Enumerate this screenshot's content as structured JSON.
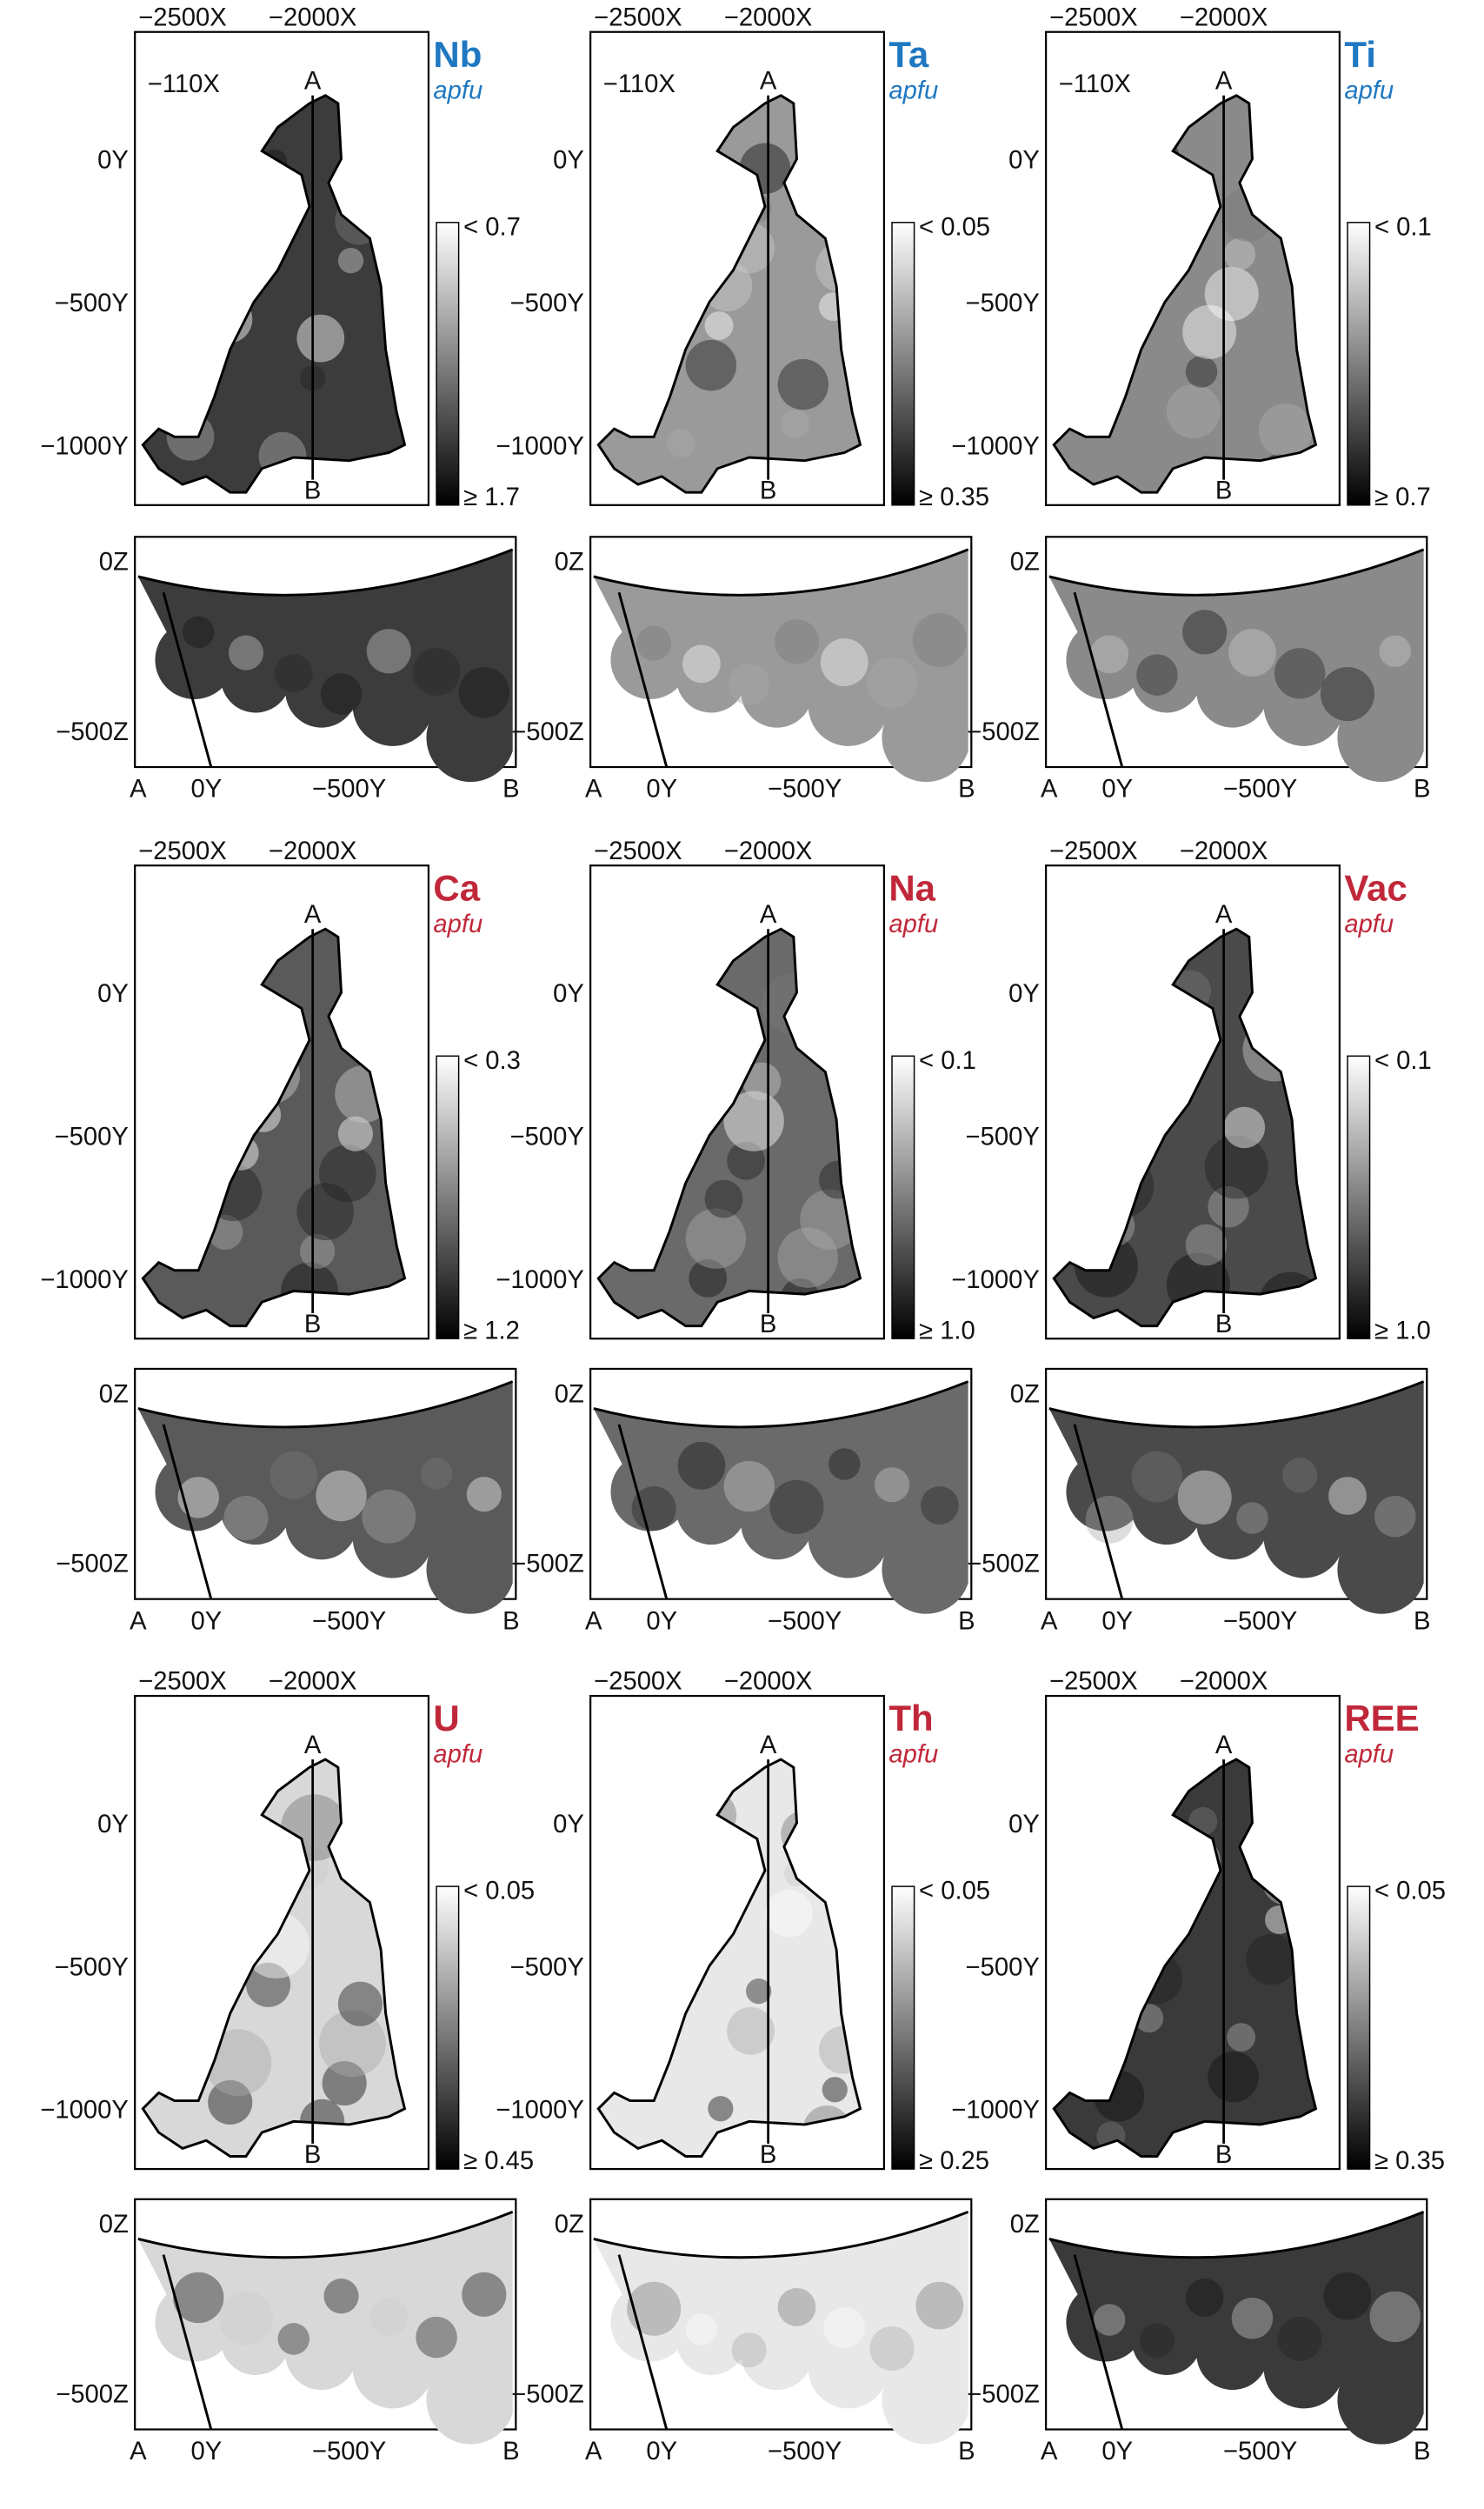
{
  "panels": [
    {
      "element": "Nb",
      "unit": "apfu",
      "title_color": "#1f78c1",
      "map_x_ticks": [
        "−2500X",
        "−2000X"
      ],
      "map_y_ticks": [
        "0Y",
        "−500Y",
        "−1000Y"
      ],
      "inset_label": "−110X",
      "section_start": "A",
      "section_end": "B",
      "colorbar_top": "< 0.7",
      "colorbar_bottom": "≥ 1.7",
      "section_z_ticks": [
        "0Z",
        "−500Z"
      ],
      "section_x_ticks": [
        "A",
        "0Y",
        "−500Y",
        "B"
      ]
    },
    {
      "element": "Ta",
      "unit": "apfu",
      "title_color": "#1f78c1",
      "map_x_ticks": [
        "−2500X",
        "−2000X"
      ],
      "map_y_ticks": [
        "0Y",
        "−500Y",
        "−1000Y"
      ],
      "inset_label": "−110X",
      "section_start": "A",
      "section_end": "B",
      "colorbar_top": "< 0.05",
      "colorbar_bottom": "≥ 0.35",
      "section_z_ticks": [
        "0Z",
        "−500Z"
      ],
      "section_x_ticks": [
        "A",
        "0Y",
        "−500Y",
        "B"
      ]
    },
    {
      "element": "Ti",
      "unit": "apfu",
      "title_color": "#1f78c1",
      "map_x_ticks": [
        "−2500X",
        "−2000X"
      ],
      "map_y_ticks": [
        "0Y",
        "−500Y",
        "−1000Y"
      ],
      "inset_label": "−110X",
      "section_start": "A",
      "section_end": "B",
      "colorbar_top": "< 0.1",
      "colorbar_bottom": "≥ 0.7",
      "section_z_ticks": [
        "0Z",
        "−500Z"
      ],
      "section_x_ticks": [
        "A",
        "0Y",
        "−500Y",
        "B"
      ]
    },
    {
      "element": "Ca",
      "unit": "apfu",
      "title_color": "#c0283a",
      "map_x_ticks": [
        "−2500X",
        "−2000X"
      ],
      "map_y_ticks": [
        "0Y",
        "−500Y",
        "−1000Y"
      ],
      "section_start": "A",
      "section_end": "B",
      "colorbar_top": "< 0.3",
      "colorbar_bottom": "≥ 1.2",
      "section_z_ticks": [
        "0Z",
        "−500Z"
      ],
      "section_x_ticks": [
        "A",
        "0Y",
        "−500Y",
        "B"
      ]
    },
    {
      "element": "Na",
      "unit": "apfu",
      "title_color": "#c0283a",
      "map_x_ticks": [
        "−2500X",
        "−2000X"
      ],
      "map_y_ticks": [
        "0Y",
        "−500Y",
        "−1000Y"
      ],
      "section_start": "A",
      "section_end": "B",
      "colorbar_top": "< 0.1",
      "colorbar_bottom": "≥ 1.0",
      "section_z_ticks": [
        "0Z",
        "−500Z"
      ],
      "section_x_ticks": [
        "A",
        "0Y",
        "−500Y",
        "B"
      ]
    },
    {
      "element": "Vac",
      "unit": "apfu",
      "title_color": "#c0283a",
      "map_x_ticks": [
        "−2500X",
        "−2000X"
      ],
      "map_y_ticks": [
        "0Y",
        "−500Y",
        "−1000Y"
      ],
      "section_start": "A",
      "section_end": "B",
      "colorbar_top": "< 0.1",
      "colorbar_bottom": "≥ 1.0",
      "section_z_ticks": [
        "0Z",
        "−500Z"
      ],
      "section_x_ticks": [
        "A",
        "0Y",
        "−500Y",
        "B"
      ]
    },
    {
      "element": "U",
      "unit": "apfu",
      "title_color": "#c0283a",
      "map_x_ticks": [
        "−2500X",
        "−2000X"
      ],
      "map_y_ticks": [
        "0Y",
        "−500Y",
        "−1000Y"
      ],
      "section_start": "A",
      "section_end": "B",
      "colorbar_top": "< 0.05",
      "colorbar_bottom": "≥ 0.45",
      "section_z_ticks": [
        "0Z",
        "−500Z"
      ],
      "section_x_ticks": [
        "A",
        "0Y",
        "−500Y",
        "B"
      ]
    },
    {
      "element": "Th",
      "unit": "apfu",
      "title_color": "#c0283a",
      "map_x_ticks": [
        "−2500X",
        "−2000X"
      ],
      "map_y_ticks": [
        "0Y",
        "−500Y",
        "−1000Y"
      ],
      "section_start": "A",
      "section_end": "B",
      "colorbar_top": "< 0.05",
      "colorbar_bottom": "≥ 0.25",
      "section_z_ticks": [
        "0Z",
        "−500Z"
      ],
      "section_x_ticks": [
        "A",
        "0Y",
        "−500Y",
        "B"
      ]
    },
    {
      "element": "REE",
      "unit": "apfu",
      "title_color": "#c0283a",
      "map_x_ticks": [
        "−2500X",
        "−2000X"
      ],
      "map_y_ticks": [
        "0Y",
        "−500Y",
        "−1000Y"
      ],
      "section_start": "A",
      "section_end": "B",
      "colorbar_top": "< 0.05",
      "colorbar_bottom": "≥ 0.35",
      "section_z_ticks": [
        "0Z",
        "−500Z"
      ],
      "section_x_ticks": [
        "A",
        "0Y",
        "−500Y",
        "B"
      ]
    }
  ]
}
